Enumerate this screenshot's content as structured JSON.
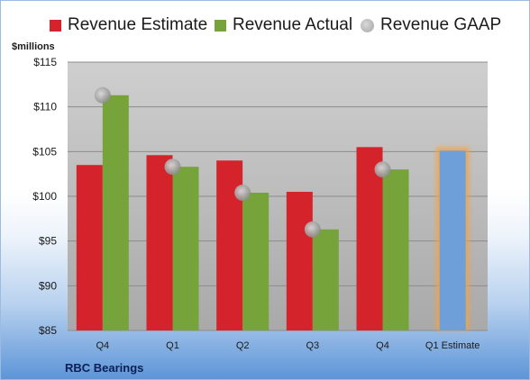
{
  "legend": {
    "estimate": "Revenue Estimate",
    "actual": "Revenue Actual",
    "gaap": "Revenue GAAP"
  },
  "colors": {
    "estimate": "#d4232a",
    "actual": "#77a33b",
    "gaap": "#a8a8a8",
    "estimate_future": "#6f9fd8"
  },
  "company": "RBC Bearings",
  "chart_data": {
    "type": "bar",
    "ylabel": "$millions",
    "ylim": [
      85,
      115
    ],
    "yticks": [
      "$85",
      "$90",
      "$95",
      "$100",
      "$105",
      "$110",
      "$115"
    ],
    "ytick_values": [
      85,
      90,
      95,
      100,
      105,
      110,
      115
    ],
    "categories": [
      "Q4",
      "Q1",
      "Q2",
      "Q3",
      "Q4",
      "Q1 Estimate"
    ],
    "grid": true,
    "legend_position": "top",
    "series": [
      {
        "name": "Revenue Estimate",
        "values": [
          103.5,
          104.6,
          104.0,
          100.5,
          105.5,
          105.1
        ]
      },
      {
        "name": "Revenue Actual",
        "values": [
          111.3,
          103.3,
          100.4,
          96.3,
          103.0,
          null
        ]
      },
      {
        "name": "Revenue GAAP",
        "values": [
          111.3,
          103.3,
          100.4,
          96.3,
          103.0,
          null
        ]
      }
    ]
  }
}
